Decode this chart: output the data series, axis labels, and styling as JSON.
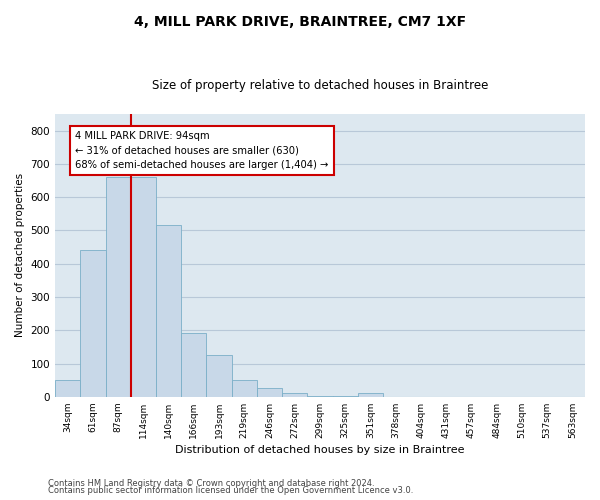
{
  "title1": "4, MILL PARK DRIVE, BRAINTREE, CM7 1XF",
  "title2": "Size of property relative to detached houses in Braintree",
  "xlabel": "Distribution of detached houses by size in Braintree",
  "ylabel": "Number of detached properties",
  "categories": [
    "34sqm",
    "61sqm",
    "87sqm",
    "114sqm",
    "140sqm",
    "166sqm",
    "193sqm",
    "219sqm",
    "246sqm",
    "272sqm",
    "299sqm",
    "325sqm",
    "351sqm",
    "378sqm",
    "404sqm",
    "431sqm",
    "457sqm",
    "484sqm",
    "510sqm",
    "537sqm",
    "563sqm"
  ],
  "values": [
    50,
    440,
    660,
    660,
    515,
    193,
    125,
    50,
    27,
    10,
    3,
    3,
    10,
    0,
    0,
    0,
    0,
    0,
    0,
    0,
    0
  ],
  "bar_color": "#c8d8e8",
  "bar_edgecolor": "#7aafc8",
  "vline_color": "#cc0000",
  "annotation_line1": "4 MILL PARK DRIVE: 94sqm",
  "annotation_line2": "← 31% of detached houses are smaller (630)",
  "annotation_line3": "68% of semi-detached houses are larger (1,404) →",
  "annotation_box_edgecolor": "#cc0000",
  "ylim": [
    0,
    850
  ],
  "yticks": [
    0,
    100,
    200,
    300,
    400,
    500,
    600,
    700,
    800
  ],
  "grid_color": "#b8c8d8",
  "bg_color": "#dde8f0",
  "footer1": "Contains HM Land Registry data © Crown copyright and database right 2024.",
  "footer2": "Contains public sector information licensed under the Open Government Licence v3.0."
}
